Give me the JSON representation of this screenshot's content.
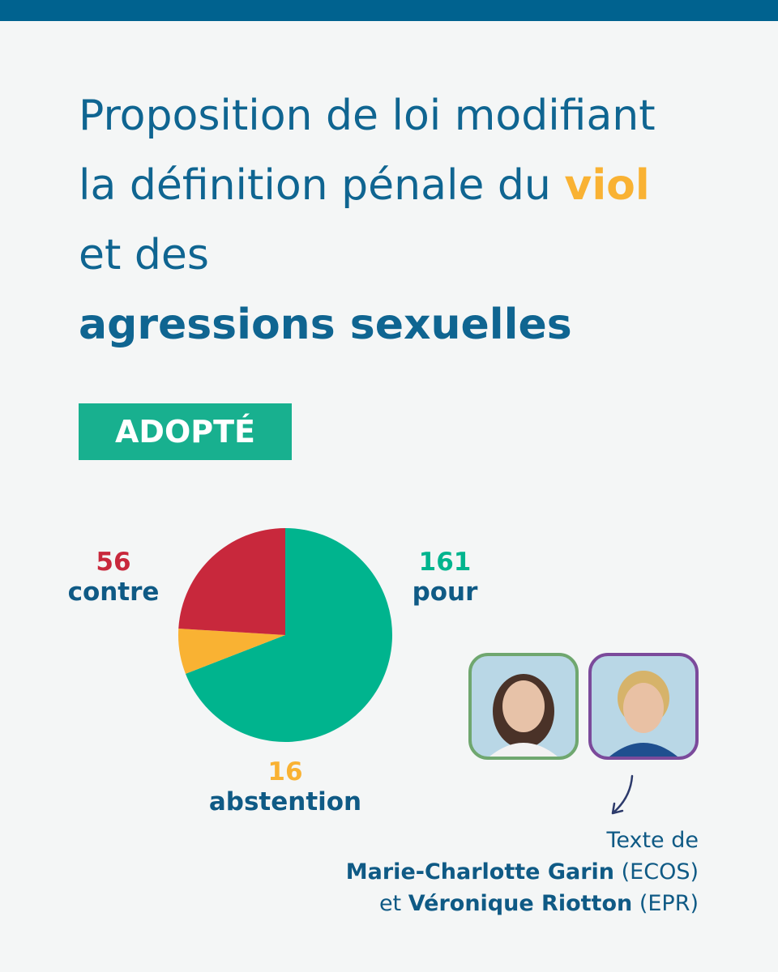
{
  "header": {
    "title_parts": [
      "Proposition de loi modifiant la définition pénale du ",
      "viol",
      " et des ",
      "agressions sexuelles"
    ]
  },
  "status": "ADOPTÉ",
  "chart_data": {
    "type": "pie",
    "categories": [
      "pour",
      "abstention",
      "contre"
    ],
    "values": [
      161,
      16,
      56
    ],
    "colors": [
      "#00b48e",
      "#f9b233",
      "#c8283c"
    ]
  },
  "credits": {
    "intro": "Texte de",
    "author_1": "Marie-Charlotte Garin",
    "group_1": " (ECOS)",
    "joiner": "et ",
    "author_2": "Véronique Riotton",
    "group_2": " (EPR)"
  }
}
